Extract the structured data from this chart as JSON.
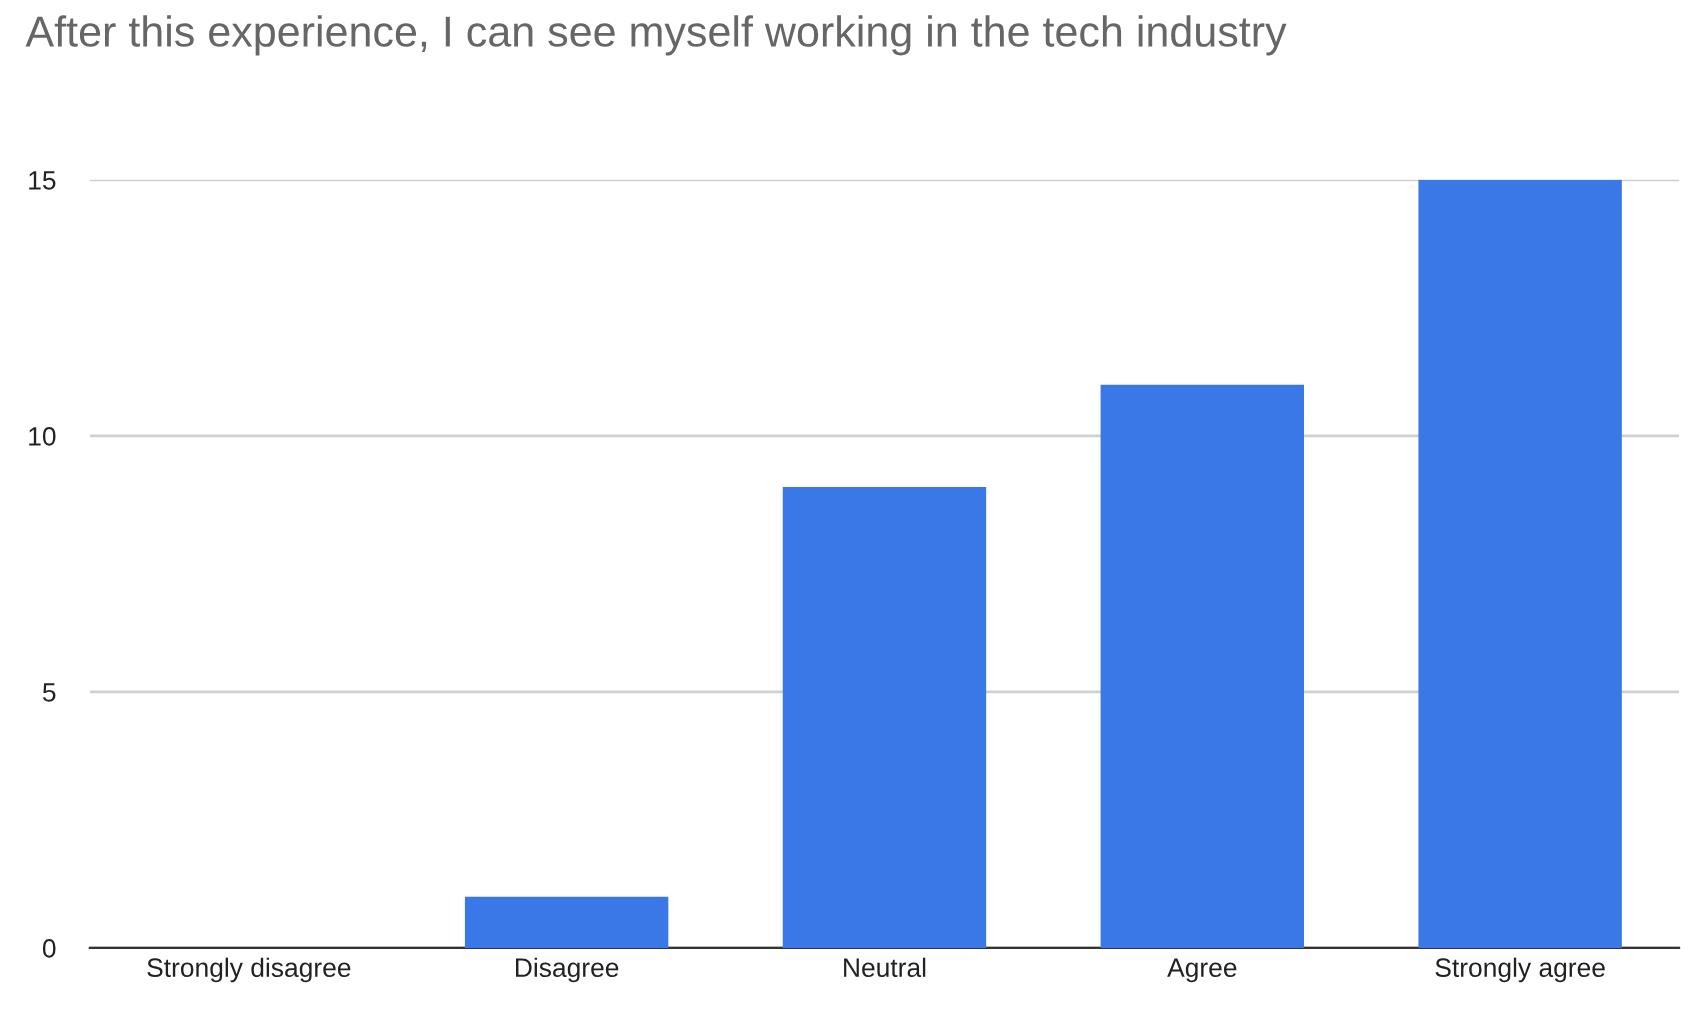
{
  "chart_data": {
    "type": "bar",
    "title": "After this experience, I can see myself working in the tech industry",
    "categories": [
      "Strongly disagree",
      "Disagree",
      "Neutral",
      "Agree",
      "Strongly agree"
    ],
    "values": [
      0,
      1,
      9,
      11,
      15
    ],
    "color": "#3b78e7",
    "ylim": [
      0,
      15
    ],
    "yticks": [
      0,
      5,
      10,
      15
    ],
    "grid": "y",
    "legend": false
  }
}
